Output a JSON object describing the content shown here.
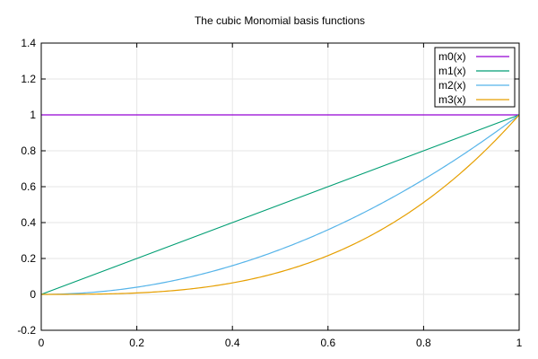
{
  "chart_data": {
    "type": "line",
    "title": "The cubic Monomial basis functions",
    "xlabel": "",
    "ylabel": "",
    "xlim": [
      0,
      1
    ],
    "ylim": [
      -0.2,
      1.4
    ],
    "xticks": [
      0,
      0.2,
      0.4,
      0.6,
      0.8,
      1
    ],
    "xtick_labels": [
      "0",
      "0.2",
      "0.4",
      "0.6",
      "0.8",
      "1"
    ],
    "yticks": [
      -0.2,
      0,
      0.2,
      0.4,
      0.6,
      0.8,
      1,
      1.2,
      1.4
    ],
    "ytick_labels": [
      "-0.2",
      "0",
      "0.2",
      "0.4",
      "0.6",
      "0.8",
      "1",
      "1.2",
      "1.4"
    ],
    "grid": true,
    "legend_position": "top-right",
    "x": [
      0,
      0.1,
      0.2,
      0.3,
      0.4,
      0.5,
      0.6,
      0.7,
      0.8,
      0.9,
      1
    ],
    "series": [
      {
        "name": "m0(x)",
        "color": "#9400d3",
        "values": [
          1,
          1,
          1,
          1,
          1,
          1,
          1,
          1,
          1,
          1,
          1
        ]
      },
      {
        "name": "m1(x)",
        "color": "#009e73",
        "values": [
          0,
          0.1,
          0.2,
          0.3,
          0.4,
          0.5,
          0.6,
          0.7,
          0.8,
          0.9,
          1
        ]
      },
      {
        "name": "m2(x)",
        "color": "#56b4e9",
        "values": [
          0,
          0.01,
          0.04,
          0.09,
          0.16,
          0.25,
          0.36,
          0.49,
          0.64,
          0.81,
          1
        ]
      },
      {
        "name": "m3(x)",
        "color": "#e69f00",
        "values": [
          0,
          0.001,
          0.008,
          0.027,
          0.064,
          0.125,
          0.216,
          0.343,
          0.512,
          0.729,
          1
        ]
      }
    ]
  }
}
